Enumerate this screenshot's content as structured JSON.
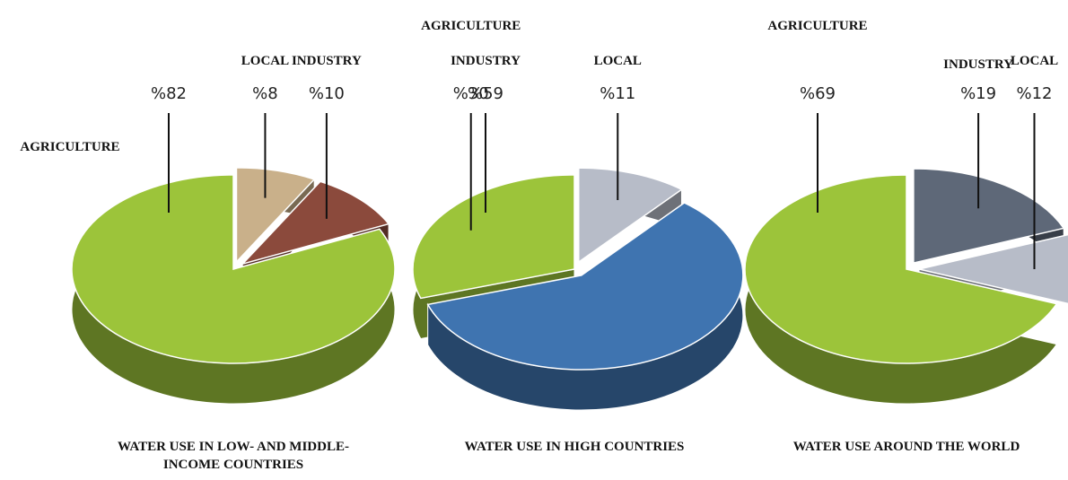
{
  "chart_data": [
    {
      "type": "pie",
      "title": "WATER USE IN LOW- AND MIDDLE-INCOME COUNTRIES",
      "categories": [
        "AGRICULTURE",
        "LOCAL",
        "INDUSTRY"
      ],
      "values": [
        82,
        8,
        10
      ],
      "value_labels": [
        "%82",
        "%8",
        "%10"
      ],
      "colors": [
        "#9cc43a",
        "#c9b08a",
        "#8b4a3c"
      ]
    },
    {
      "type": "pie",
      "title": "WATER USE IN HIGH COUNTRIES",
      "categories": [
        "AGRICULTURE",
        "LOCAL",
        "INDUSTRY"
      ],
      "values": [
        30,
        11,
        59
      ],
      "value_labels": [
        "%30",
        "%11",
        "%59"
      ],
      "colors": [
        "#9cc43a",
        "#b7bcc8",
        "#3f74b0"
      ]
    },
    {
      "type": "pie",
      "title": "WATER USE AROUND THE WORLD",
      "categories": [
        "AGRICULTURE",
        "INDUSTRY",
        "LOCAL"
      ],
      "values": [
        69,
        19,
        12
      ],
      "value_labels": [
        "%69",
        "%19",
        "%12"
      ],
      "colors": [
        "#9cc43a",
        "#5e6878",
        "#b7bcc8"
      ]
    }
  ]
}
